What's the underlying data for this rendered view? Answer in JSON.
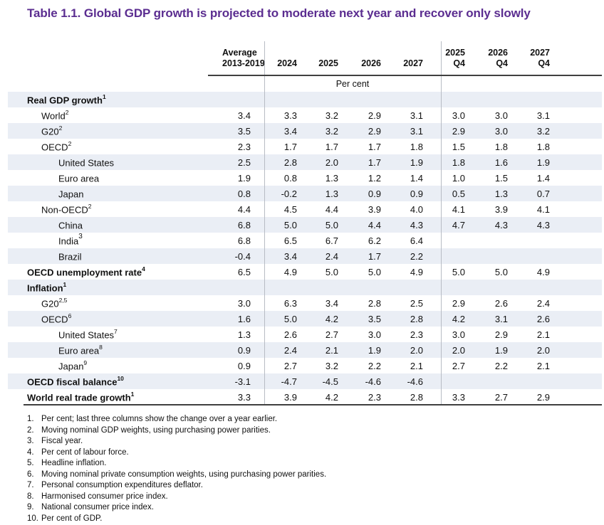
{
  "title": "Table 1.1. Global GDP growth is projected to moderate next year and recover only slowly",
  "colors": {
    "title_purple": "#5b2d90",
    "row_stripe": "#eaeef5",
    "rule_dark": "#3f3f3f",
    "rule_light": "#b8bcc4",
    "text": "#111111"
  },
  "table": {
    "headers": {
      "average_line1": "Average",
      "average_line2": "2013-2019",
      "years": [
        "2024",
        "2025",
        "2026",
        "2027"
      ],
      "quarters": [
        {
          "year": "2025",
          "quarter": "Q4"
        },
        {
          "year": "2026",
          "quarter": "Q4"
        },
        {
          "year": "2027",
          "quarter": "Q4"
        }
      ]
    },
    "unit_label": "Per cent",
    "rows": [
      {
        "label": "Real GDP growth",
        "sup": "1",
        "indent": 0,
        "bold": true,
        "values": [
          "",
          "",
          "",
          "",
          "",
          "",
          "",
          ""
        ]
      },
      {
        "label": "World",
        "sup": "2",
        "indent": 1,
        "bold": false,
        "values": [
          "3.4",
          "3.3",
          "3.2",
          "2.9",
          "3.1",
          "3.0",
          "3.0",
          "3.1"
        ]
      },
      {
        "label": "G20",
        "sup": "2",
        "indent": 1,
        "bold": false,
        "values": [
          "3.5",
          "3.4",
          "3.2",
          "2.9",
          "3.1",
          "2.9",
          "3.0",
          "3.2"
        ]
      },
      {
        "label": "OECD",
        "sup": "2",
        "indent": 1,
        "bold": false,
        "values": [
          "2.3",
          "1.7",
          "1.7",
          "1.7",
          "1.8",
          "1.5",
          "1.8",
          "1.8"
        ]
      },
      {
        "label": "United States",
        "sup": "",
        "indent": 2,
        "bold": false,
        "values": [
          "2.5",
          "2.8",
          "2.0",
          "1.7",
          "1.9",
          "1.8",
          "1.6",
          "1.9"
        ]
      },
      {
        "label": "Euro area",
        "sup": "",
        "indent": 2,
        "bold": false,
        "values": [
          "1.9",
          "0.8",
          "1.3",
          "1.2",
          "1.4",
          "1.0",
          "1.5",
          "1.4"
        ]
      },
      {
        "label": "Japan",
        "sup": "",
        "indent": 2,
        "bold": false,
        "values": [
          "0.8",
          "-0.2",
          "1.3",
          "0.9",
          "0.9",
          "0.5",
          "1.3",
          "0.7"
        ]
      },
      {
        "label": "Non-OECD",
        "sup": "2",
        "indent": 1,
        "bold": false,
        "values": [
          "4.4",
          "4.5",
          "4.4",
          "3.9",
          "4.0",
          "4.1",
          "3.9",
          "4.1"
        ]
      },
      {
        "label": "China",
        "sup": "",
        "indent": 2,
        "bold": false,
        "values": [
          "6.8",
          "5.0",
          "5.0",
          "4.4",
          "4.3",
          "4.7",
          "4.3",
          "4.3"
        ]
      },
      {
        "label": "India",
        "sup": "3",
        "big_sup": true,
        "indent": 2,
        "bold": false,
        "values": [
          "6.8",
          "6.5",
          "6.7",
          "6.2",
          "6.4",
          "",
          "",
          ""
        ]
      },
      {
        "label": "Brazil",
        "sup": "",
        "indent": 2,
        "bold": false,
        "values": [
          "-0.4",
          "3.4",
          "2.4",
          "1.7",
          "2.2",
          "",
          "",
          ""
        ]
      },
      {
        "label": "OECD unemployment rate",
        "sup": "4",
        "indent": 0,
        "bold": true,
        "values": [
          "6.5",
          "4.9",
          "5.0",
          "5.0",
          "4.9",
          "5.0",
          "5.0",
          "4.9"
        ]
      },
      {
        "label": "Inflation",
        "sup": "1",
        "indent": 0,
        "bold": true,
        "values": [
          "",
          "",
          "",
          "",
          "",
          "",
          "",
          ""
        ]
      },
      {
        "label": "G20",
        "sup": "2,5",
        "indent": 1,
        "bold": false,
        "values": [
          "3.0",
          "6.3",
          "3.4",
          "2.8",
          "2.5",
          "2.9",
          "2.6",
          "2.4"
        ]
      },
      {
        "label": "OECD",
        "sup": "6",
        "indent": 1,
        "bold": false,
        "values": [
          "1.6",
          "5.0",
          "4.2",
          "3.5",
          "2.8",
          "4.2",
          "3.1",
          "2.6"
        ]
      },
      {
        "label": "United States",
        "sup": "7",
        "indent": 2,
        "bold": false,
        "values": [
          "1.3",
          "2.6",
          "2.7",
          "3.0",
          "2.3",
          "3.0",
          "2.9",
          "2.1"
        ]
      },
      {
        "label": "Euro area",
        "sup": "8",
        "indent": 2,
        "bold": false,
        "values": [
          "0.9",
          "2.4",
          "2.1",
          "1.9",
          "2.0",
          "2.0",
          "1.9",
          "2.0"
        ]
      },
      {
        "label": "Japan",
        "sup": "9",
        "indent": 2,
        "bold": false,
        "values": [
          "0.9",
          "2.7",
          "3.2",
          "2.2",
          "2.1",
          "2.7",
          "2.2",
          "2.1"
        ]
      },
      {
        "label": "OECD fiscal balance",
        "sup": "10",
        "indent": 0,
        "bold": true,
        "values": [
          "-3.1",
          "-4.7",
          "-4.5",
          "-4.6",
          "-4.6",
          "",
          "",
          ""
        ]
      },
      {
        "label": "World real trade growth",
        "sup": "1",
        "indent": 0,
        "bold": true,
        "values": [
          "3.3",
          "3.9",
          "4.2",
          "2.3",
          "2.8",
          "3.3",
          "2.7",
          "2.9"
        ]
      }
    ]
  },
  "footnotes": [
    {
      "num": "1.",
      "text": "Per cent; last three columns show the change over a year earlier."
    },
    {
      "num": "2.",
      "text": "Moving nominal GDP weights, using purchasing power parities."
    },
    {
      "num": "3.",
      "text": "Fiscal year."
    },
    {
      "num": "4.",
      "text": "Per cent of labour force."
    },
    {
      "num": "5.",
      "text": "Headline inflation."
    },
    {
      "num": "6.",
      "text": "Moving nominal private consumption weights, using purchasing power parities."
    },
    {
      "num": "7.",
      "text": "Personal consumption expenditures deflator."
    },
    {
      "num": "8.",
      "text": "Harmonised consumer price index."
    },
    {
      "num": "9.",
      "text": "National consumer price index."
    },
    {
      "num": "10.",
      "text": "Per cent of GDP."
    }
  ]
}
